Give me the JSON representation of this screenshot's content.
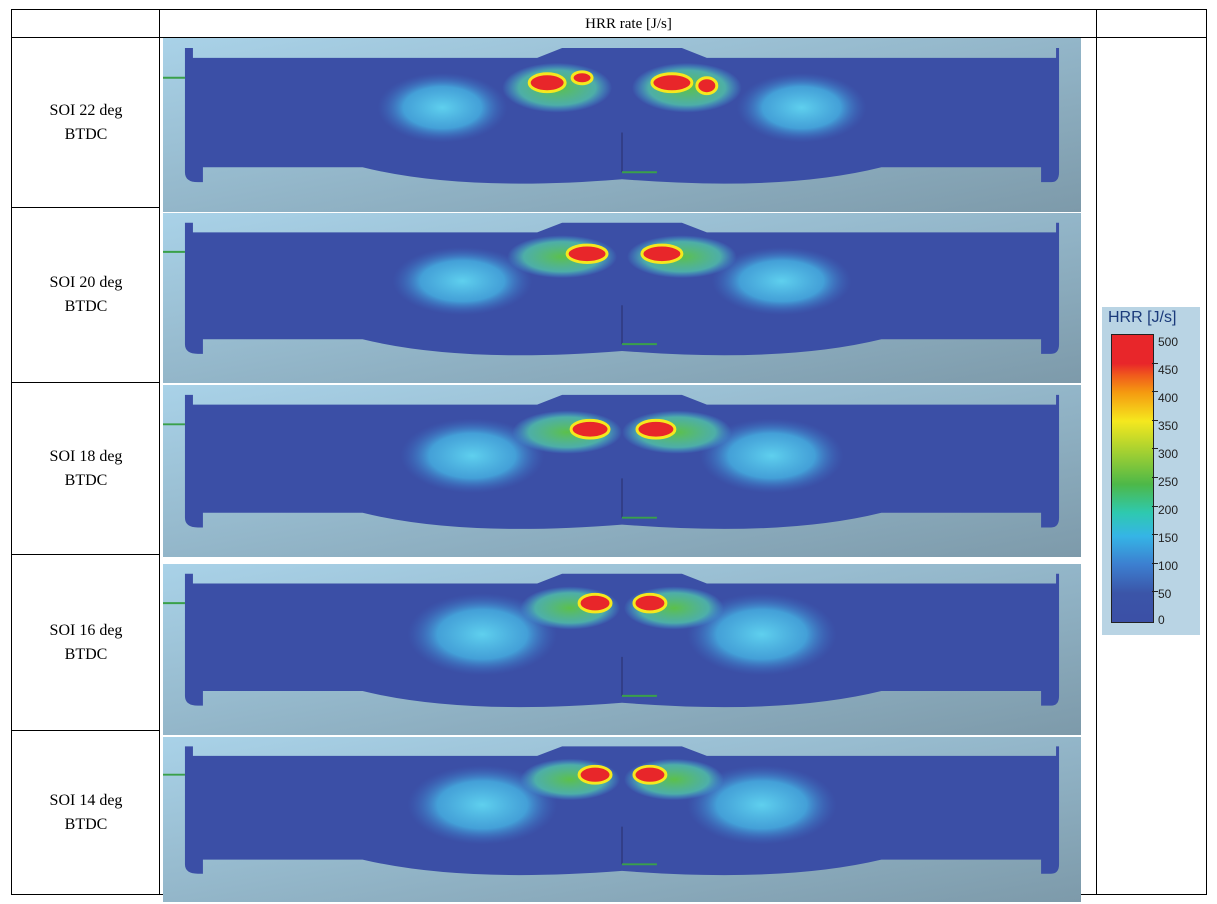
{
  "header": {
    "title": "HRR rate [J/s]"
  },
  "rows": [
    {
      "line1": "SOI 22 deg",
      "line2": "BTDC"
    },
    {
      "line1": "SOI 20 deg",
      "line2": "BTDC"
    },
    {
      "line1": "SOI 18 deg",
      "line2": "BTDC"
    },
    {
      "line1": "SOI 16 deg",
      "line2": "BTDC"
    },
    {
      "line1": "SOI 14 deg",
      "line2": "BTDC"
    }
  ],
  "legend": {
    "title": "HRR [J/s]",
    "ticks": [
      "500",
      "450",
      "400",
      "350",
      "300",
      "250",
      "200",
      "150",
      "100",
      "50",
      "0"
    ]
  },
  "colors": {
    "chamber": "#3b4fa6",
    "background": "#9cbccc",
    "hot": "#e8262a",
    "warm": "#f5e81e",
    "mid": "#4db848",
    "cool": "#35c4ea"
  }
}
